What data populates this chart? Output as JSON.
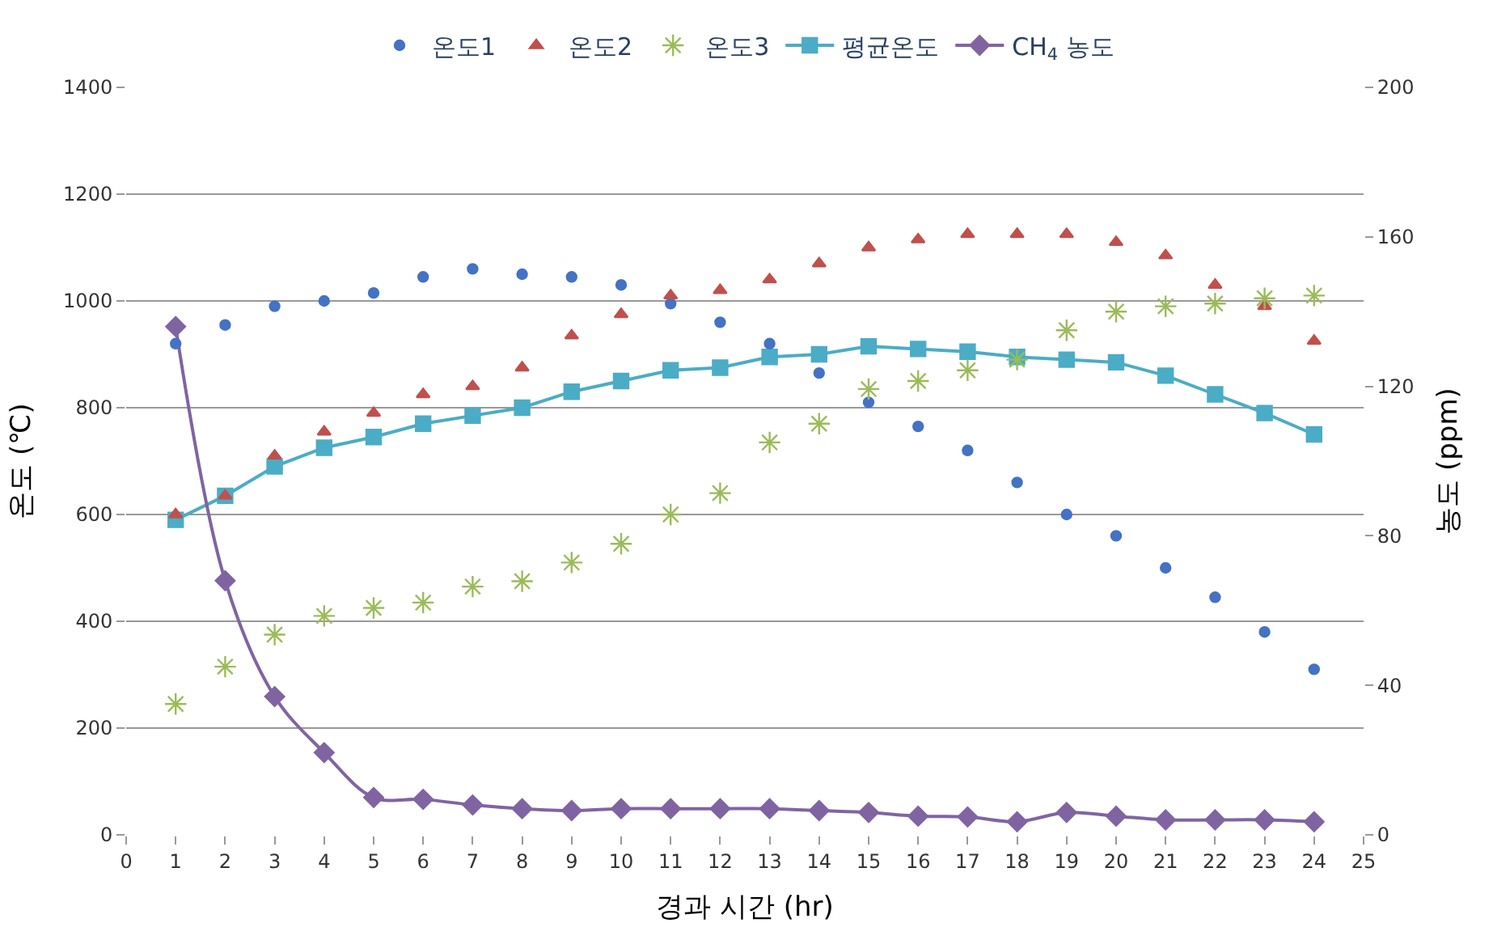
{
  "chart_data": {
    "type": "scatter",
    "xlabel": "경과 시간 (hr)",
    "ylabel": "온도 (℃)",
    "y2label": "농도 (ppm)",
    "x": [
      1,
      2,
      3,
      4,
      5,
      6,
      7,
      8,
      9,
      10,
      11,
      12,
      13,
      14,
      15,
      16,
      17,
      18,
      19,
      20,
      21,
      22,
      23,
      24
    ],
    "xlim": [
      0,
      25
    ],
    "xticks": [
      0,
      1,
      2,
      3,
      4,
      5,
      6,
      7,
      8,
      9,
      10,
      11,
      12,
      13,
      14,
      15,
      16,
      17,
      18,
      19,
      20,
      21,
      22,
      23,
      24,
      25
    ],
    "ylim": [
      0,
      1400
    ],
    "yticks": [
      0,
      200,
      400,
      600,
      800,
      1000,
      1200,
      1400
    ],
    "y2lim": [
      0,
      200
    ],
    "y2ticks": [
      0,
      40,
      80,
      120,
      160,
      200
    ],
    "grid": "y",
    "legend": "top",
    "series": [
      {
        "name": "온도1",
        "marker": "circle",
        "color": "#4472c4",
        "values": [
          920,
          955,
          990,
          1000,
          1015,
          1045,
          1060,
          1050,
          1045,
          1030,
          995,
          960,
          920,
          865,
          810,
          765,
          720,
          660,
          600,
          560,
          500,
          445,
          380,
          310
        ]
      },
      {
        "name": "온도2",
        "marker": "triangle",
        "color": "#c0504d",
        "values": [
          600,
          635,
          710,
          755,
          790,
          825,
          840,
          875,
          935,
          975,
          1010,
          1020,
          1040,
          1070,
          1100,
          1115,
          1125,
          1125,
          1125,
          1110,
          1085,
          1030,
          990,
          925
        ]
      },
      {
        "name": "온도3",
        "marker": "cross",
        "color": "#9bbb59",
        "values": [
          245,
          315,
          375,
          410,
          425,
          435,
          465,
          475,
          510,
          545,
          600,
          640,
          735,
          770,
          835,
          850,
          870,
          890,
          945,
          980,
          990,
          995,
          1005,
          1010
        ]
      },
      {
        "name": "평균온도",
        "type": "line",
        "marker": "square",
        "color": "#4bacc6",
        "values": [
          590,
          635,
          690,
          725,
          745,
          770,
          785,
          800,
          830,
          850,
          870,
          875,
          895,
          900,
          915,
          910,
          905,
          895,
          890,
          885,
          860,
          825,
          790,
          750
        ]
      },
      {
        "name": "CH$_{4}$ 농도",
        "type": "line",
        "marker": "diamond",
        "axis": "y2",
        "color": "#8064a2",
        "values": [
          136,
          68,
          37,
          22,
          10,
          9.5,
          8,
          7,
          6.5,
          7,
          7,
          7,
          7,
          6.5,
          6,
          5,
          4.8,
          3.5,
          6,
          5,
          4,
          4,
          4,
          3.5
        ]
      }
    ]
  }
}
